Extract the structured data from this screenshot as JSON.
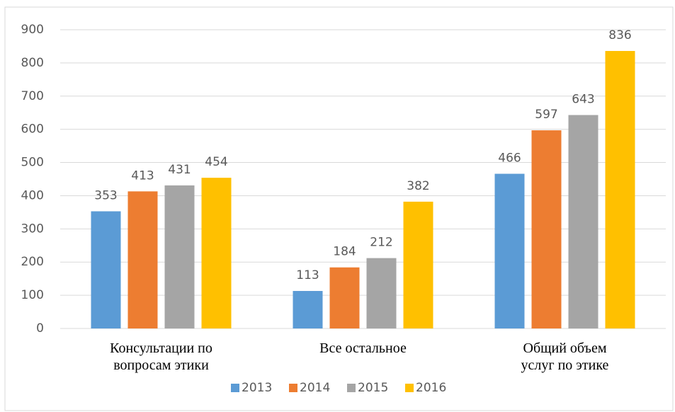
{
  "chart_data": {
    "type": "bar",
    "categories": [
      "Консультации по\nвопросам этики",
      "Все остальное",
      "Общий объем\nуслуг по этике"
    ],
    "series": [
      {
        "name": "2013",
        "color": "#5b9bd5",
        "values": [
          353,
          113,
          466
        ]
      },
      {
        "name": "2014",
        "color": "#ed7d31",
        "values": [
          413,
          184,
          597
        ]
      },
      {
        "name": "2015",
        "color": "#a5a5a5",
        "values": [
          431,
          212,
          643
        ]
      },
      {
        "name": "2016",
        "color": "#ffc000",
        "values": [
          454,
          382,
          836
        ]
      }
    ],
    "ylim": [
      0,
      900
    ],
    "yticks": [
      0,
      100,
      200,
      300,
      400,
      500,
      600,
      700,
      800,
      900
    ],
    "grid": true,
    "legend": "bottom"
  }
}
